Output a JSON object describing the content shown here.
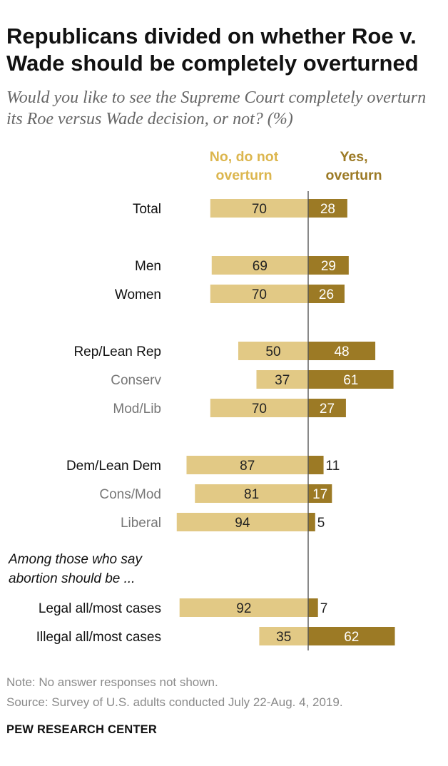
{
  "title": "Republicans divided on whether Roe v. Wade should be completely overturned",
  "subtitle": "Would you like to see the Supreme Court completely overturn its Roe versus Wade decision, or not? (%)",
  "legend": {
    "no_line1": "No, do not",
    "no_line2": "overturn",
    "yes_line1": "Yes,",
    "yes_line2": "overturn"
  },
  "colors": {
    "no": "#e2c985",
    "yes": "#9c7a25",
    "no_text": "#dcb64e",
    "label_primary": "#111111",
    "label_secondary": "#777777",
    "axis": "#555555"
  },
  "chart_data": {
    "type": "bar",
    "orientation": "horizontal-diverging",
    "series": [
      {
        "name": "No, do not overturn",
        "values": [
          70,
          69,
          70,
          50,
          37,
          70,
          87,
          81,
          94,
          92,
          35
        ]
      },
      {
        "name": "Yes, overturn",
        "values": [
          28,
          29,
          26,
          48,
          61,
          27,
          11,
          17,
          5,
          7,
          62
        ]
      }
    ],
    "rows": [
      {
        "label": "Total",
        "no": 70,
        "yes": 28,
        "style": "primary"
      },
      {
        "label": "Men",
        "no": 69,
        "yes": 29,
        "style": "primary"
      },
      {
        "label": "Women",
        "no": 70,
        "yes": 26,
        "style": "primary"
      },
      {
        "label": "Rep/Lean Rep",
        "no": 50,
        "yes": 48,
        "style": "primary"
      },
      {
        "label": "Conserv",
        "no": 37,
        "yes": 61,
        "style": "secondary"
      },
      {
        "label": "Mod/Lib",
        "no": 70,
        "yes": 27,
        "style": "secondary"
      },
      {
        "label": "Dem/Lean Dem",
        "no": 87,
        "yes": 11,
        "style": "primary"
      },
      {
        "label": "Cons/Mod",
        "no": 81,
        "yes": 17,
        "style": "secondary"
      },
      {
        "label": "Liberal",
        "no": 94,
        "yes": 5,
        "style": "secondary"
      },
      {
        "label": "Legal all/most cases",
        "no": 92,
        "yes": 7,
        "style": "primary"
      },
      {
        "label": "Illegal all/most cases",
        "no": 35,
        "yes": 62,
        "style": "primary"
      }
    ],
    "section_note_line1": "Among those who say",
    "section_note_line2": "abortion should be ...",
    "grid": false
  },
  "footer": {
    "note": "Note: No answer responses not shown.",
    "source": "Source: Survey of U.S. adults conducted July 22-Aug. 4, 2019.",
    "brand": "PEW RESEARCH CENTER"
  }
}
